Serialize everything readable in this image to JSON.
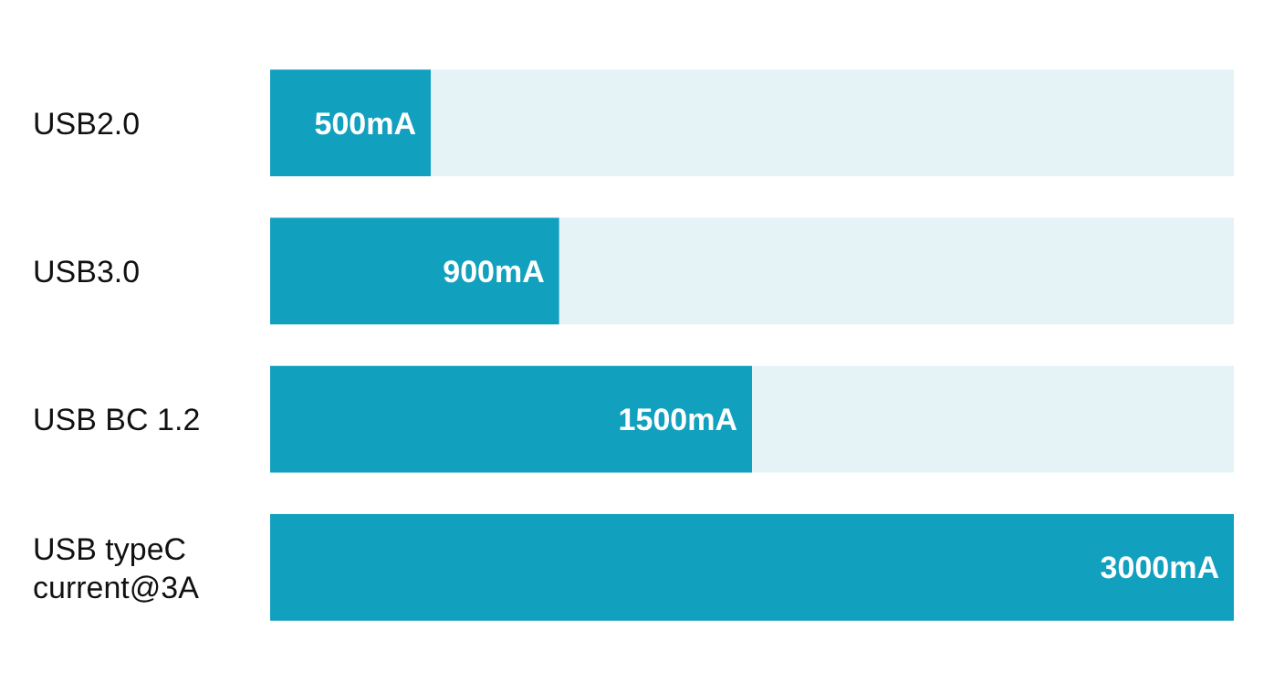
{
  "chart_data": {
    "type": "bar",
    "orientation": "horizontal",
    "stacked": true,
    "categories": [
      "USB2.0",
      "USB3.0",
      "USB BC 1.2",
      "USB typeC\ncurrent@3A"
    ],
    "xlim": [
      0,
      3000
    ],
    "series": [
      {
        "color": "#12a0bf",
        "values": [
          500,
          900,
          1500,
          3000
        ],
        "value_labels": [
          "500mA",
          "900mA",
          "1500mA",
          "3000mA"
        ]
      },
      {
        "color": "#e5f3f7",
        "values": [
          2500,
          2100,
          1500,
          0
        ]
      }
    ]
  }
}
